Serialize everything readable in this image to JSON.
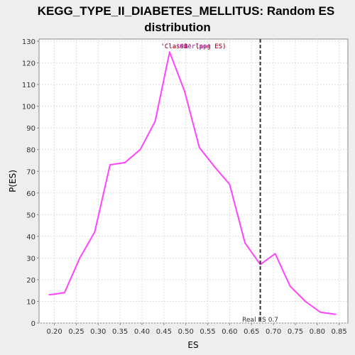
{
  "chart_data": {
    "type": "line",
    "title_line1": "KEGG_TYPE_II_DIABETES_MELLITUS: Random ES",
    "title_line2": "distribution",
    "xlabel": "ES",
    "ylabel": "P(ES)",
    "xlim": [
      0.165,
      0.87
    ],
    "ylim": [
      0,
      131
    ],
    "x_ticks": [
      0.2,
      0.25,
      0.3,
      0.35,
      0.4,
      0.45,
      0.5,
      0.55,
      0.6,
      0.65,
      0.7,
      0.75,
      0.8,
      0.85
    ],
    "x_tick_labels": [
      "0.20",
      "0.25",
      "0.30",
      "0.35",
      "0.40",
      "0.45",
      "0.50",
      "0.55",
      "0.60",
      "0.65",
      "0.70",
      "0.75",
      "0.80",
      "0.85"
    ],
    "y_ticks": [
      0,
      10,
      20,
      30,
      40,
      50,
      60,
      70,
      80,
      90,
      100,
      110,
      120,
      130
    ],
    "grid": true,
    "series": [
      {
        "color": "#ff44ff",
        "x": [
          0.188,
          0.223,
          0.258,
          0.292,
          0.327,
          0.361,
          0.396,
          0.43,
          0.463,
          0.497,
          0.531,
          0.566,
          0.6,
          0.635,
          0.67,
          0.704,
          0.738,
          0.773,
          0.807,
          0.842
        ],
        "y": [
          13,
          14,
          30,
          42,
          73,
          74,
          80,
          93,
          125,
          107,
          81,
          72,
          64,
          37,
          27,
          32,
          17,
          10,
          5,
          4
        ]
      }
    ],
    "legend": {
      "placement": "top-center",
      "entries": [
        {
          "text": "'ClassA' (pos ES)",
          "color": "#0000cc"
        },
        {
          "text": "'ClassB' (neg ES)",
          "color": "#dd0000"
        },
        {
          "text": "'Overlap'",
          "color": "#aa00aa"
        }
      ]
    },
    "annotations": [
      {
        "type": "vline",
        "x": 0.67,
        "label": "Real ES 0.7",
        "color": "#333333"
      }
    ]
  }
}
